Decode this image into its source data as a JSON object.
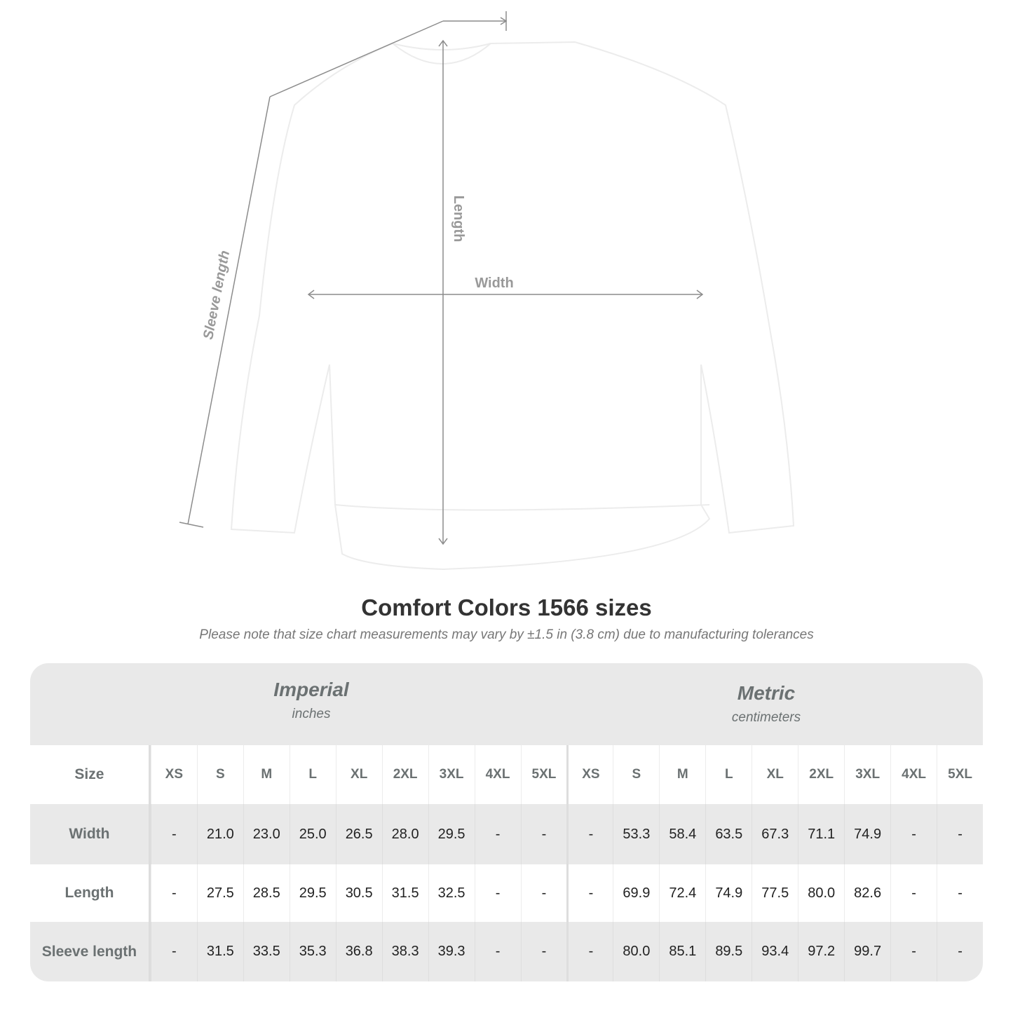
{
  "diagram": {
    "length_label": "Length",
    "width_label": "Width",
    "sleeve_label": "Sleeve length"
  },
  "title": "Comfort Colors 1566 sizes",
  "note": "Please note that size chart measurements may vary by ±1.5 in (3.8 cm) due to manufacturing tolerances",
  "table": {
    "imperial": {
      "name": "Imperial",
      "unit": "inches"
    },
    "metric": {
      "name": "Metric",
      "unit": "centimeters"
    },
    "size_label": "Size",
    "sizes": [
      "XS",
      "S",
      "M",
      "L",
      "XL",
      "2XL",
      "3XL",
      "4XL",
      "5XL"
    ],
    "rows": [
      {
        "label": "Width",
        "imperial": [
          "-",
          "21.0",
          "23.0",
          "25.0",
          "26.5",
          "28.0",
          "29.5",
          "-",
          "-"
        ],
        "metric": [
          "-",
          "53.3",
          "58.4",
          "63.5",
          "67.3",
          "71.1",
          "74.9",
          "-",
          "-"
        ]
      },
      {
        "label": "Length",
        "imperial": [
          "-",
          "27.5",
          "28.5",
          "29.5",
          "30.5",
          "31.5",
          "32.5",
          "-",
          "-"
        ],
        "metric": [
          "-",
          "69.9",
          "72.4",
          "74.9",
          "77.5",
          "80.0",
          "82.6",
          "-",
          "-"
        ]
      },
      {
        "label": "Sleeve length",
        "imperial": [
          "-",
          "31.5",
          "33.5",
          "35.3",
          "36.8",
          "38.3",
          "39.3",
          "-",
          "-"
        ],
        "metric": [
          "-",
          "80.0",
          "85.1",
          "89.5",
          "93.4",
          "97.2",
          "99.7",
          "-",
          "-"
        ]
      }
    ]
  }
}
